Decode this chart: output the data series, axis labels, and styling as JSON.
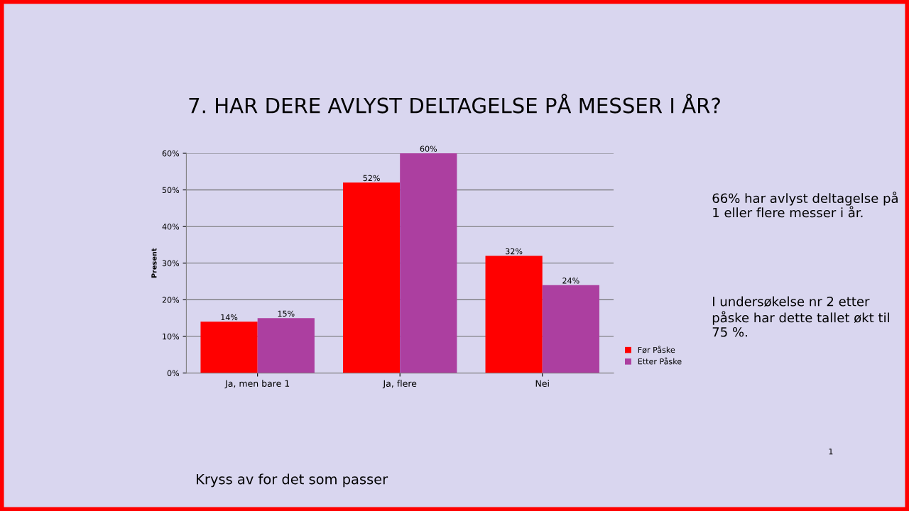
{
  "chart_data": {
    "type": "bar",
    "title": "7. HAR DERE AVLYST DELTAGELSE PÅ MESSER I ÅR?",
    "ylabel": "Present",
    "categories": [
      "Ja, men bare 1",
      "Ja, flere",
      "Nei"
    ],
    "series": [
      {
        "name": "Før Påske",
        "color": "#ff0000",
        "values": [
          14,
          52,
          32
        ],
        "value_labels": [
          "14%",
          "52%",
          "32%"
        ]
      },
      {
        "name": "Etter Påske",
        "color": "#ac3fa0",
        "values": [
          15,
          60,
          24
        ],
        "value_labels": [
          "15%",
          "60%",
          "24%"
        ]
      }
    ],
    "ylim": [
      0,
      60
    ],
    "yticks": [
      {
        "value": 0,
        "label": "0%"
      },
      {
        "value": 10,
        "label": "10%"
      },
      {
        "value": 20,
        "label": "20%"
      },
      {
        "value": 30,
        "label": "30%"
      },
      {
        "value": 40,
        "label": "40%"
      },
      {
        "value": 50,
        "label": "50%"
      },
      {
        "value": 60,
        "label": "60%"
      }
    ],
    "grid": "y",
    "legend": "bottom right",
    "annotations": [
      "66% har avlyst deltagelse på 1 eller flere messer i år.",
      "I undersøkelse nr 2 etter påske har dette tallet økt til 75 %.",
      "Kryss av for det som passer",
      "1"
    ]
  }
}
